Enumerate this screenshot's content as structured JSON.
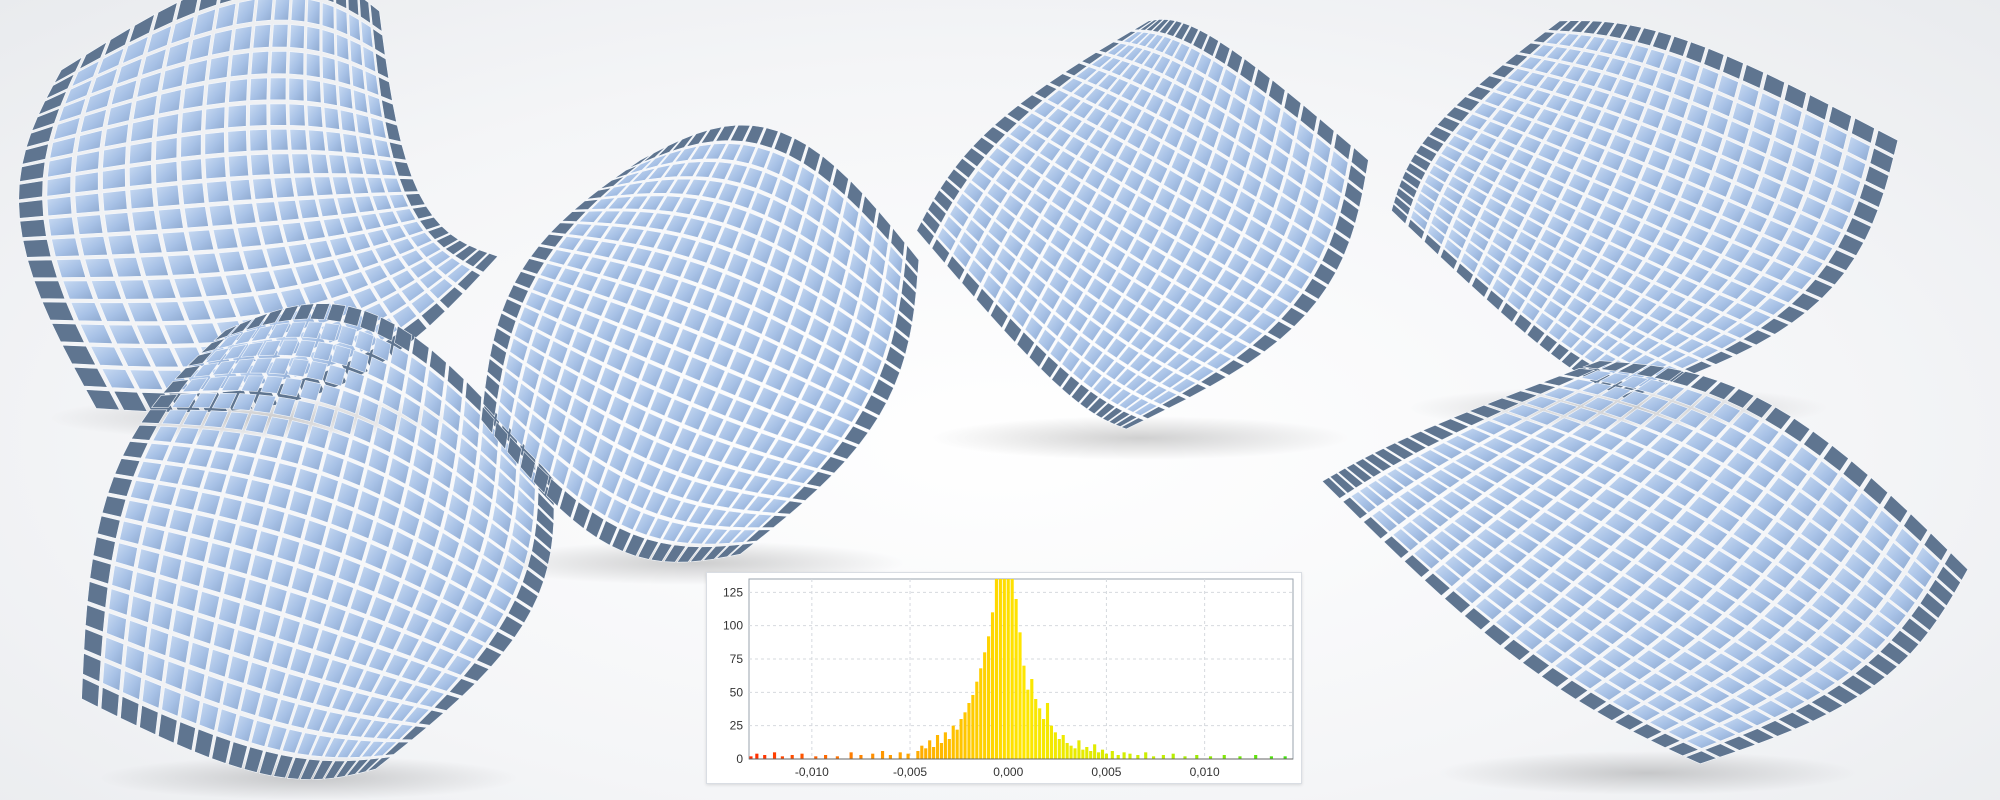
{
  "scene": {
    "surface_fill": "#a9c3e6",
    "surface_edge": "#5f7590",
    "grid_line": "#f5f8fc",
    "icon": "tiled-freeform-surfaces"
  },
  "chart_data": {
    "type": "bar",
    "title": "",
    "xlabel": "",
    "ylabel": "",
    "xlim": [
      -0.0132,
      0.0145
    ],
    "ylim": [
      0,
      135
    ],
    "xticks": [
      -0.01,
      -0.005,
      0.0,
      0.005,
      0.01
    ],
    "xtick_labels": [
      "-0,010",
      "-0,005",
      "0,000",
      "0,005",
      "0,010"
    ],
    "yticks": [
      0,
      25,
      50,
      75,
      100,
      125
    ],
    "ytick_labels": [
      "0",
      "25",
      "50",
      "75",
      "100",
      "125"
    ],
    "grid": true,
    "color_scale": [
      "#ff2a00",
      "#ff9900",
      "#ffe600",
      "#c8f000",
      "#3adf10"
    ],
    "bin_width": 0.0001,
    "bins": [
      {
        "x": -0.0131,
        "y": 2
      },
      {
        "x": -0.0128,
        "y": 4
      },
      {
        "x": -0.0124,
        "y": 3
      },
      {
        "x": -0.0119,
        "y": 5
      },
      {
        "x": -0.0115,
        "y": 2
      },
      {
        "x": -0.011,
        "y": 3
      },
      {
        "x": -0.0105,
        "y": 4
      },
      {
        "x": -0.0098,
        "y": 2
      },
      {
        "x": -0.0093,
        "y": 3
      },
      {
        "x": -0.0087,
        "y": 2
      },
      {
        "x": -0.008,
        "y": 5
      },
      {
        "x": -0.0075,
        "y": 3
      },
      {
        "x": -0.0069,
        "y": 4
      },
      {
        "x": -0.0064,
        "y": 6
      },
      {
        "x": -0.006,
        "y": 3
      },
      {
        "x": -0.0055,
        "y": 5
      },
      {
        "x": -0.0051,
        "y": 4
      },
      {
        "x": -0.0046,
        "y": 6
      },
      {
        "x": -0.0044,
        "y": 10
      },
      {
        "x": -0.0042,
        "y": 8
      },
      {
        "x": -0.004,
        "y": 14
      },
      {
        "x": -0.0038,
        "y": 9
      },
      {
        "x": -0.0036,
        "y": 18
      },
      {
        "x": -0.0034,
        "y": 12
      },
      {
        "x": -0.0032,
        "y": 20
      },
      {
        "x": -0.003,
        "y": 15
      },
      {
        "x": -0.0028,
        "y": 25
      },
      {
        "x": -0.0026,
        "y": 22
      },
      {
        "x": -0.0024,
        "y": 30
      },
      {
        "x": -0.0022,
        "y": 35
      },
      {
        "x": -0.002,
        "y": 42
      },
      {
        "x": -0.0018,
        "y": 48
      },
      {
        "x": -0.0016,
        "y": 58
      },
      {
        "x": -0.0014,
        "y": 68
      },
      {
        "x": -0.0012,
        "y": 80
      },
      {
        "x": -0.001,
        "y": 92
      },
      {
        "x": -0.0008,
        "y": 110
      },
      {
        "x": -0.0006,
        "y": 135
      },
      {
        "x": -0.0004,
        "y": 135
      },
      {
        "x": -0.0002,
        "y": 135
      },
      {
        "x": 0.0,
        "y": 135
      },
      {
        "x": 0.0002,
        "y": 135
      },
      {
        "x": 0.0004,
        "y": 120
      },
      {
        "x": 0.0006,
        "y": 95
      },
      {
        "x": 0.0008,
        "y": 70
      },
      {
        "x": 0.001,
        "y": 52
      },
      {
        "x": 0.0012,
        "y": 60
      },
      {
        "x": 0.0014,
        "y": 45
      },
      {
        "x": 0.0016,
        "y": 38
      },
      {
        "x": 0.0018,
        "y": 30
      },
      {
        "x": 0.002,
        "y": 42
      },
      {
        "x": 0.0022,
        "y": 25
      },
      {
        "x": 0.0024,
        "y": 20
      },
      {
        "x": 0.0026,
        "y": 15
      },
      {
        "x": 0.0028,
        "y": 18
      },
      {
        "x": 0.003,
        "y": 12
      },
      {
        "x": 0.0032,
        "y": 10
      },
      {
        "x": 0.0034,
        "y": 8
      },
      {
        "x": 0.0036,
        "y": 14
      },
      {
        "x": 0.0038,
        "y": 7
      },
      {
        "x": 0.004,
        "y": 9
      },
      {
        "x": 0.0042,
        "y": 6
      },
      {
        "x": 0.0044,
        "y": 11
      },
      {
        "x": 0.0046,
        "y": 5
      },
      {
        "x": 0.0048,
        "y": 7
      },
      {
        "x": 0.005,
        "y": 4
      },
      {
        "x": 0.0053,
        "y": 6
      },
      {
        "x": 0.0056,
        "y": 3
      },
      {
        "x": 0.0059,
        "y": 5
      },
      {
        "x": 0.0062,
        "y": 4
      },
      {
        "x": 0.0066,
        "y": 3
      },
      {
        "x": 0.007,
        "y": 5
      },
      {
        "x": 0.0074,
        "y": 2
      },
      {
        "x": 0.0079,
        "y": 3
      },
      {
        "x": 0.0084,
        "y": 4
      },
      {
        "x": 0.009,
        "y": 2
      },
      {
        "x": 0.0096,
        "y": 3
      },
      {
        "x": 0.0103,
        "y": 2
      },
      {
        "x": 0.011,
        "y": 3
      },
      {
        "x": 0.0118,
        "y": 2
      },
      {
        "x": 0.0126,
        "y": 3
      },
      {
        "x": 0.0134,
        "y": 2
      },
      {
        "x": 0.0141,
        "y": 2
      }
    ]
  }
}
